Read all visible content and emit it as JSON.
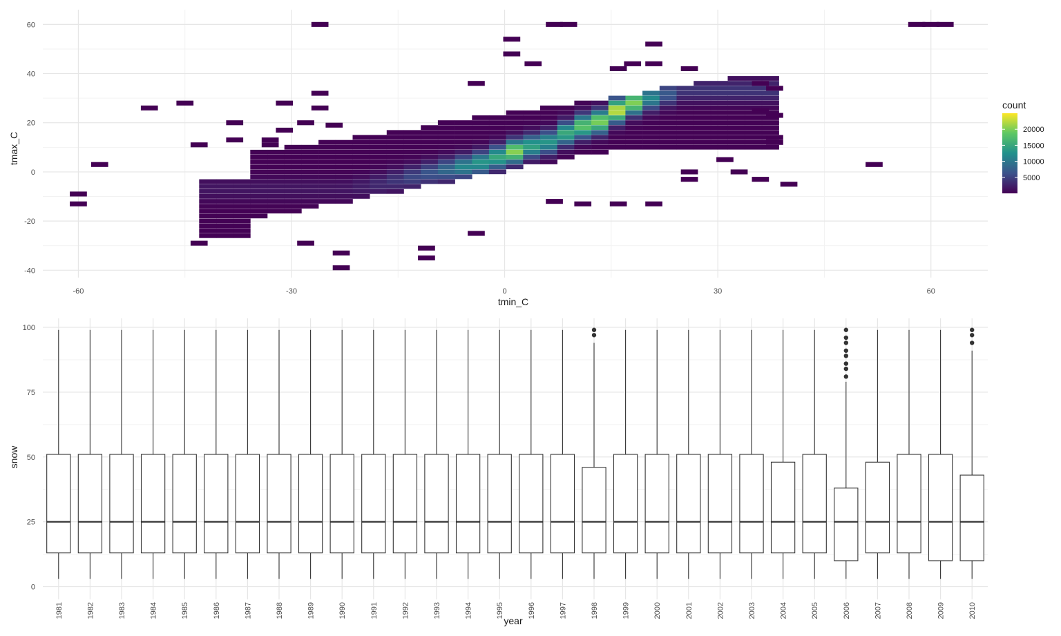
{
  "chart_data": [
    {
      "type": "heatmap",
      "xlabel": "tmin_C",
      "ylabel": "tmax_C",
      "xlim": [
        -65,
        68
      ],
      "ylim": [
        -43,
        66
      ],
      "x_ticks": [
        -60,
        -30,
        0,
        30,
        60
      ],
      "x_tick_labels": [
        "-60",
        "-30",
        "0",
        "30",
        "60"
      ],
      "y_ticks": [
        -40,
        -20,
        0,
        20,
        40,
        60
      ],
      "y_tick_labels": [
        "-40",
        "-20",
        "0",
        "20",
        "40",
        "60"
      ],
      "grid": true,
      "bin_width_x": 2.4,
      "bin_height_y": 2.0,
      "legend": {
        "title": "count",
        "position": "right",
        "breaks": [
          5000,
          10000,
          15000,
          20000
        ],
        "break_labels": [
          "5000",
          "10000",
          "15000",
          "20000"
        ],
        "range": [
          1,
          25000
        ],
        "palette": [
          "#440154",
          "#3b528b",
          "#21908c",
          "#5dc863",
          "#fde725"
        ]
      },
      "ridge_counts": [
        {
          "x": -24,
          "y": -8,
          "count": 1500
        },
        {
          "x": -21,
          "y": -7,
          "count": 2200
        },
        {
          "x": -19,
          "y": -6,
          "count": 3000
        },
        {
          "x": -16,
          "y": -4,
          "count": 4200
        },
        {
          "x": -14,
          "y": -3,
          "count": 5500
        },
        {
          "x": -11,
          "y": -1,
          "count": 7000
        },
        {
          "x": -9,
          "y": 0,
          "count": 9000
        },
        {
          "x": -7,
          "y": 1,
          "count": 11500
        },
        {
          "x": -4,
          "y": 3,
          "count": 13500
        },
        {
          "x": -2,
          "y": 5,
          "count": 15000
        },
        {
          "x": 0,
          "y": 7,
          "count": 21000
        },
        {
          "x": 2,
          "y": 9,
          "count": 14500
        },
        {
          "x": 5,
          "y": 11,
          "count": 13000
        },
        {
          "x": 7,
          "y": 14,
          "count": 14500
        },
        {
          "x": 9,
          "y": 17,
          "count": 17500
        },
        {
          "x": 12,
          "y": 19,
          "count": 19500
        },
        {
          "x": 14,
          "y": 23,
          "count": 22000
        },
        {
          "x": 16,
          "y": 26,
          "count": 25000
        },
        {
          "x": 18,
          "y": 28,
          "count": 15000
        },
        {
          "x": 21,
          "y": 30,
          "count": 8000
        },
        {
          "x": 24,
          "y": 32,
          "count": 4000
        }
      ],
      "outliers": [
        {
          "x": -26,
          "y": 60
        },
        {
          "x": 7,
          "y": 60
        },
        {
          "x": 9,
          "y": 60
        },
        {
          "x": 58,
          "y": 60
        },
        {
          "x": 60,
          "y": 60
        },
        {
          "x": 62,
          "y": 60
        },
        {
          "x": 1,
          "y": 54
        },
        {
          "x": 21,
          "y": 52
        },
        {
          "x": 1,
          "y": 48
        },
        {
          "x": 4,
          "y": 44
        },
        {
          "x": 16,
          "y": 42
        },
        {
          "x": 18,
          "y": 44
        },
        {
          "x": 21,
          "y": 44
        },
        {
          "x": 26,
          "y": 42
        },
        {
          "x": -4,
          "y": 36
        },
        {
          "x": -26,
          "y": 32
        },
        {
          "x": -50,
          "y": 26
        },
        {
          "x": -45,
          "y": 28
        },
        {
          "x": -31,
          "y": 28
        },
        {
          "x": -26,
          "y": 26
        },
        {
          "x": -38,
          "y": 20
        },
        {
          "x": -28,
          "y": 20
        },
        {
          "x": -31,
          "y": 17
        },
        {
          "x": -24,
          "y": 19
        },
        {
          "x": -43,
          "y": 11
        },
        {
          "x": -38,
          "y": 13
        },
        {
          "x": -33,
          "y": 13
        },
        {
          "x": -33,
          "y": 11
        },
        {
          "x": -57,
          "y": 3
        },
        {
          "x": -60,
          "y": -9
        },
        {
          "x": -60,
          "y": -13
        },
        {
          "x": 36,
          "y": 25
        },
        {
          "x": 38,
          "y": 23
        },
        {
          "x": 38,
          "y": 14
        },
        {
          "x": 38,
          "y": 12
        },
        {
          "x": 36,
          "y": 36
        },
        {
          "x": 38,
          "y": 34
        },
        {
          "x": 26,
          "y": 0
        },
        {
          "x": 26,
          "y": -3
        },
        {
          "x": 31,
          "y": 5
        },
        {
          "x": 33,
          "y": 0
        },
        {
          "x": 36,
          "y": -3
        },
        {
          "x": 40,
          "y": -5
        },
        {
          "x": 52,
          "y": 3
        },
        {
          "x": 21,
          "y": -13
        },
        {
          "x": 16,
          "y": -13
        },
        {
          "x": 11,
          "y": -13
        },
        {
          "x": 7,
          "y": -12
        },
        {
          "x": -43,
          "y": -29
        },
        {
          "x": -28,
          "y": -29
        },
        {
          "x": -23,
          "y": -33
        },
        {
          "x": -23,
          "y": -39
        },
        {
          "x": -11,
          "y": -31
        },
        {
          "x": -11,
          "y": -35
        },
        {
          "x": -4,
          "y": -25
        }
      ]
    },
    {
      "type": "box",
      "xlabel": "year",
      "ylabel": "snow",
      "ylim": [
        0,
        100
      ],
      "y_ticks": [
        0,
        25,
        50,
        75,
        100
      ],
      "y_tick_labels": [
        "0",
        "25",
        "50",
        "75",
        "100"
      ],
      "grid": true,
      "categories": [
        "1981",
        "1982",
        "1983",
        "1984",
        "1985",
        "1986",
        "1987",
        "1988",
        "1989",
        "1990",
        "1991",
        "1992",
        "1993",
        "1994",
        "1995",
        "1996",
        "1997",
        "1998",
        "1999",
        "2000",
        "2001",
        "2002",
        "2003",
        "2004",
        "2005",
        "2006",
        "2007",
        "2008",
        "2009",
        "2010"
      ],
      "boxes": [
        {
          "min": 3,
          "q1": 13,
          "median": 25,
          "q3": 51,
          "max": 99,
          "outliers": []
        },
        {
          "min": 3,
          "q1": 13,
          "median": 25,
          "q3": 51,
          "max": 99,
          "outliers": []
        },
        {
          "min": 3,
          "q1": 13,
          "median": 25,
          "q3": 51,
          "max": 99,
          "outliers": []
        },
        {
          "min": 3,
          "q1": 13,
          "median": 25,
          "q3": 51,
          "max": 99,
          "outliers": []
        },
        {
          "min": 3,
          "q1": 13,
          "median": 25,
          "q3": 51,
          "max": 99,
          "outliers": []
        },
        {
          "min": 3,
          "q1": 13,
          "median": 25,
          "q3": 51,
          "max": 99,
          "outliers": []
        },
        {
          "min": 3,
          "q1": 13,
          "median": 25,
          "q3": 51,
          "max": 99,
          "outliers": []
        },
        {
          "min": 3,
          "q1": 13,
          "median": 25,
          "q3": 51,
          "max": 99,
          "outliers": []
        },
        {
          "min": 3,
          "q1": 13,
          "median": 25,
          "q3": 51,
          "max": 99,
          "outliers": []
        },
        {
          "min": 3,
          "q1": 13,
          "median": 25,
          "q3": 51,
          "max": 99,
          "outliers": []
        },
        {
          "min": 3,
          "q1": 13,
          "median": 25,
          "q3": 51,
          "max": 99,
          "outliers": []
        },
        {
          "min": 3,
          "q1": 13,
          "median": 25,
          "q3": 51,
          "max": 99,
          "outliers": []
        },
        {
          "min": 3,
          "q1": 13,
          "median": 25,
          "q3": 51,
          "max": 99,
          "outliers": []
        },
        {
          "min": 3,
          "q1": 13,
          "median": 25,
          "q3": 51,
          "max": 99,
          "outliers": []
        },
        {
          "min": 3,
          "q1": 13,
          "median": 25,
          "q3": 51,
          "max": 99,
          "outliers": []
        },
        {
          "min": 3,
          "q1": 13,
          "median": 25,
          "q3": 51,
          "max": 99,
          "outliers": []
        },
        {
          "min": 3,
          "q1": 13,
          "median": 25,
          "q3": 51,
          "max": 99,
          "outliers": []
        },
        {
          "min": 3,
          "q1": 13,
          "median": 25,
          "q3": 46,
          "max": 94,
          "outliers": [
            97,
            99
          ]
        },
        {
          "min": 3,
          "q1": 13,
          "median": 25,
          "q3": 51,
          "max": 99,
          "outliers": []
        },
        {
          "min": 3,
          "q1": 13,
          "median": 25,
          "q3": 51,
          "max": 99,
          "outliers": []
        },
        {
          "min": 3,
          "q1": 13,
          "median": 25,
          "q3": 51,
          "max": 99,
          "outliers": []
        },
        {
          "min": 3,
          "q1": 13,
          "median": 25,
          "q3": 51,
          "max": 99,
          "outliers": []
        },
        {
          "min": 3,
          "q1": 13,
          "median": 25,
          "q3": 51,
          "max": 99,
          "outliers": []
        },
        {
          "min": 3,
          "q1": 13,
          "median": 25,
          "q3": 48,
          "max": 99,
          "outliers": []
        },
        {
          "min": 3,
          "q1": 13,
          "median": 25,
          "q3": 51,
          "max": 99,
          "outliers": []
        },
        {
          "min": 3,
          "q1": 10,
          "median": 25,
          "q3": 38,
          "max": 79,
          "outliers": [
            81,
            84,
            86,
            89,
            91,
            94,
            96,
            99
          ]
        },
        {
          "min": 3,
          "q1": 13,
          "median": 25,
          "q3": 48,
          "max": 99,
          "outliers": []
        },
        {
          "min": 3,
          "q1": 13,
          "median": 25,
          "q3": 51,
          "max": 99,
          "outliers": []
        },
        {
          "min": 3,
          "q1": 10,
          "median": 25,
          "q3": 51,
          "max": 99,
          "outliers": []
        },
        {
          "min": 3,
          "q1": 10,
          "median": 25,
          "q3": 43,
          "max": 91,
          "outliers": [
            94,
            97,
            99
          ]
        }
      ]
    }
  ]
}
